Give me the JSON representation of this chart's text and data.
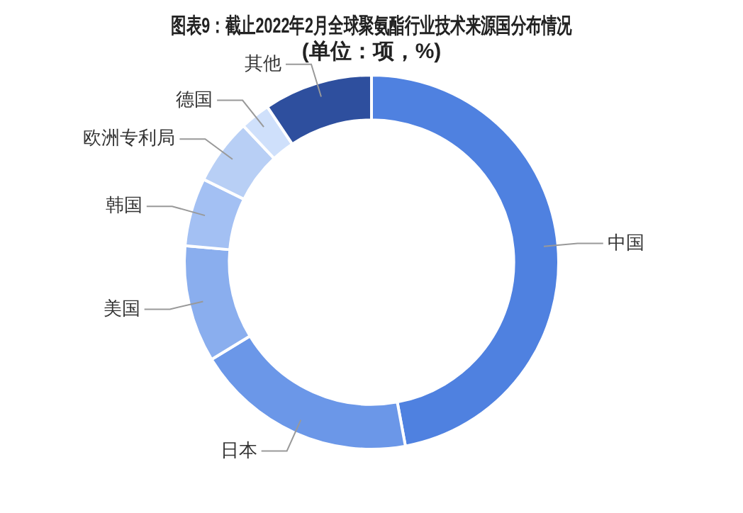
{
  "chart_data": {
    "type": "donut",
    "title": "图表9：截止2022年2月全球聚氨酯行业技术来源国分布情况",
    "subtitle": "(单位：项，%)",
    "categories": [
      "中国",
      "日本",
      "美国",
      "韩国",
      "欧洲专利局",
      "德国",
      "其他"
    ],
    "values": [
      47.1,
      19.2,
      10.1,
      5.9,
      5.7,
      2.6,
      9.4
    ],
    "colors": [
      "#4f81e0",
      "#6b97e8",
      "#8aaeee",
      "#a3c0f3",
      "#b8cff5",
      "#cfe0fb",
      "#2e4f9e"
    ],
    "legend": false
  }
}
